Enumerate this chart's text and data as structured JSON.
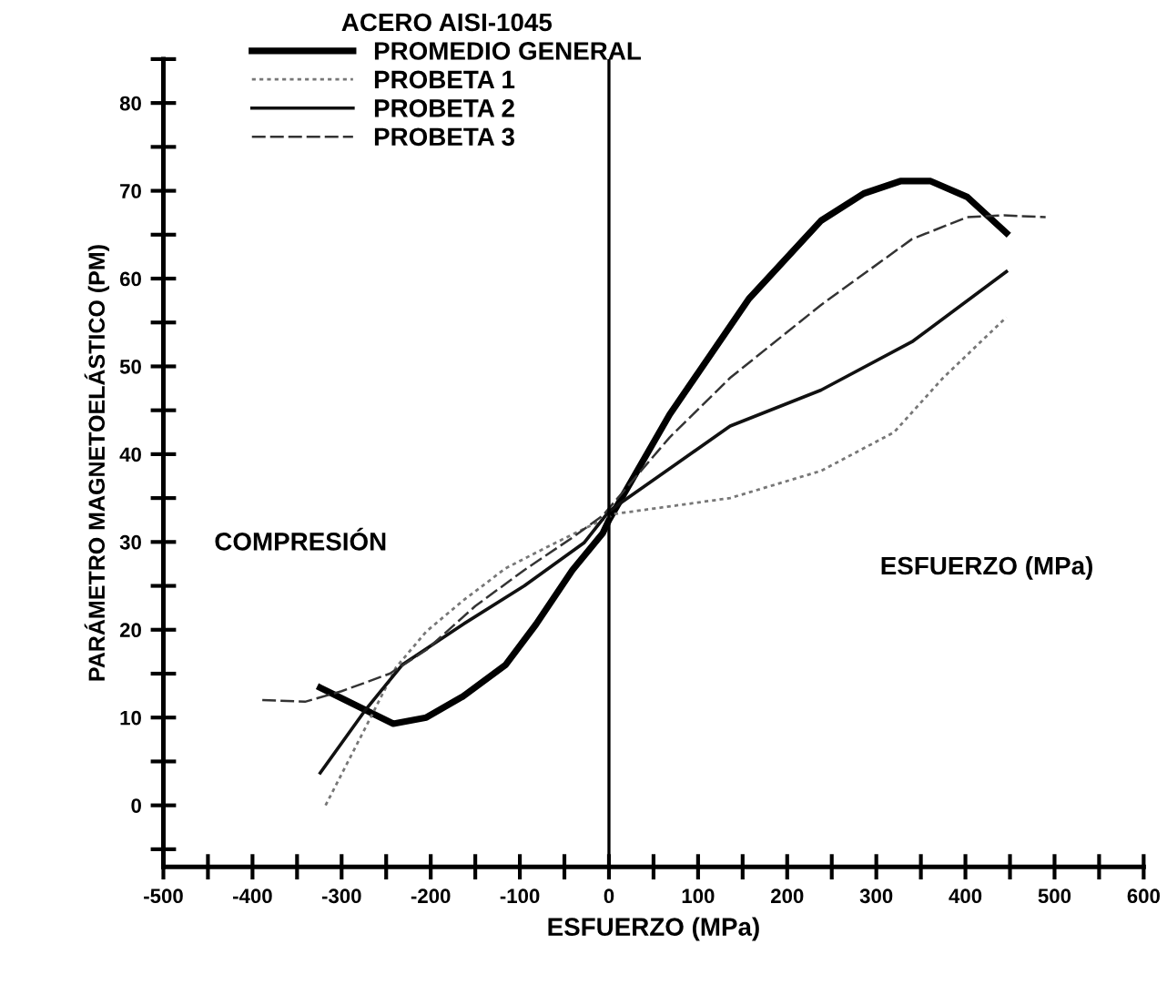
{
  "chart_data": {
    "type": "line",
    "legend_title": "ACERO AISI-1045",
    "xlabel": "ESFUERZO (MPa)",
    "ylabel": "PARÁMETRO MAGNETOELÁSTICO (PM)",
    "xlim": [
      -500,
      600
    ],
    "ylim": [
      -7,
      85
    ],
    "xticks": [
      -500,
      {
        "value": -450,
        "label": null
      },
      -400,
      {
        "value": -350,
        "label": null
      },
      -300,
      {
        "value": -250,
        "label": null
      },
      -200,
      {
        "value": -150,
        "label": null
      },
      -100,
      {
        "value": -50,
        "label": null
      },
      0,
      {
        "value": 50,
        "label": null
      },
      100,
      {
        "value": 150,
        "label": null
      },
      200,
      {
        "value": 250,
        "label": null
      },
      300,
      {
        "value": 350,
        "label": null
      },
      400,
      {
        "value": 450,
        "label": null
      },
      500,
      {
        "value": 550,
        "label": null
      },
      600
    ],
    "yticks": [
      {
        "value": -5,
        "label": null
      },
      0,
      {
        "value": 5,
        "label": null
      },
      10,
      {
        "value": 15,
        "label": null
      },
      20,
      {
        "value": 25,
        "label": null
      },
      30,
      {
        "value": 35,
        "label": null
      },
      40,
      {
        "value": 45,
        "label": null
      },
      50,
      {
        "value": 55,
        "label": null
      },
      60,
      {
        "value": 65,
        "label": null
      },
      70,
      {
        "value": 75,
        "label": null
      },
      80,
      {
        "value": 85,
        "label": null
      }
    ],
    "grid": false,
    "legend": "top left",
    "marker": "none",
    "ref_lines": [
      {
        "axis": "x",
        "value": 0,
        "color": "#000000"
      }
    ],
    "annotations": [
      "COMPRESIÓN",
      "ESFUERZO (MPa)"
    ],
    "series": [
      {
        "name": "PROMEDIO GENERAL",
        "color": "#000000",
        "line_style": "solid",
        "x": [
          -324,
          -242,
          -205,
          -164,
          -116,
          -82,
          -41,
          -7,
          0,
          68,
          157,
          238,
          286,
          327,
          361,
          402,
          446
        ],
        "values": [
          13.4,
          9.3,
          10,
          12.4,
          16,
          20.6,
          26.8,
          31,
          32.5,
          44.5,
          57.7,
          66.6,
          69.7,
          71.1,
          71.1,
          69.3,
          65.2
        ]
      },
      {
        "name": "PROBETA 1",
        "color": "#777777",
        "line_style": "dotted",
        "x": [
          -318,
          -273,
          -239,
          -205,
          -164,
          -116,
          -68,
          -28,
          7,
          136,
          238,
          320,
          375,
          446
        ],
        "values": [
          0,
          8.9,
          15.7,
          19.8,
          23.3,
          27,
          29.5,
          31.5,
          33.2,
          35,
          38.1,
          42.5,
          48.7,
          55.6
        ]
      },
      {
        "name": "PROBETA 2",
        "color": "#111111",
        "line_style": "solid",
        "x": [
          -324,
          -273,
          -232,
          -164,
          -95,
          -28,
          0,
          136,
          238,
          340,
          446
        ],
        "values": [
          3.7,
          10.9,
          16,
          20.6,
          25,
          29.9,
          33.5,
          43.2,
          47.3,
          52.8,
          60.8
        ]
      },
      {
        "name": "PROBETA 3",
        "color": "#333333",
        "line_style": "dashed",
        "x": [
          -389,
          -341,
          -300,
          -246,
          -205,
          -150,
          -95,
          -41,
          -7,
          68,
          136,
          238,
          340,
          402,
          443,
          490
        ],
        "values": [
          12,
          11.8,
          13,
          15,
          17.7,
          22.7,
          26.8,
          30.5,
          33,
          41.9,
          48.7,
          57,
          64.5,
          67,
          67.2,
          67
        ]
      }
    ]
  }
}
